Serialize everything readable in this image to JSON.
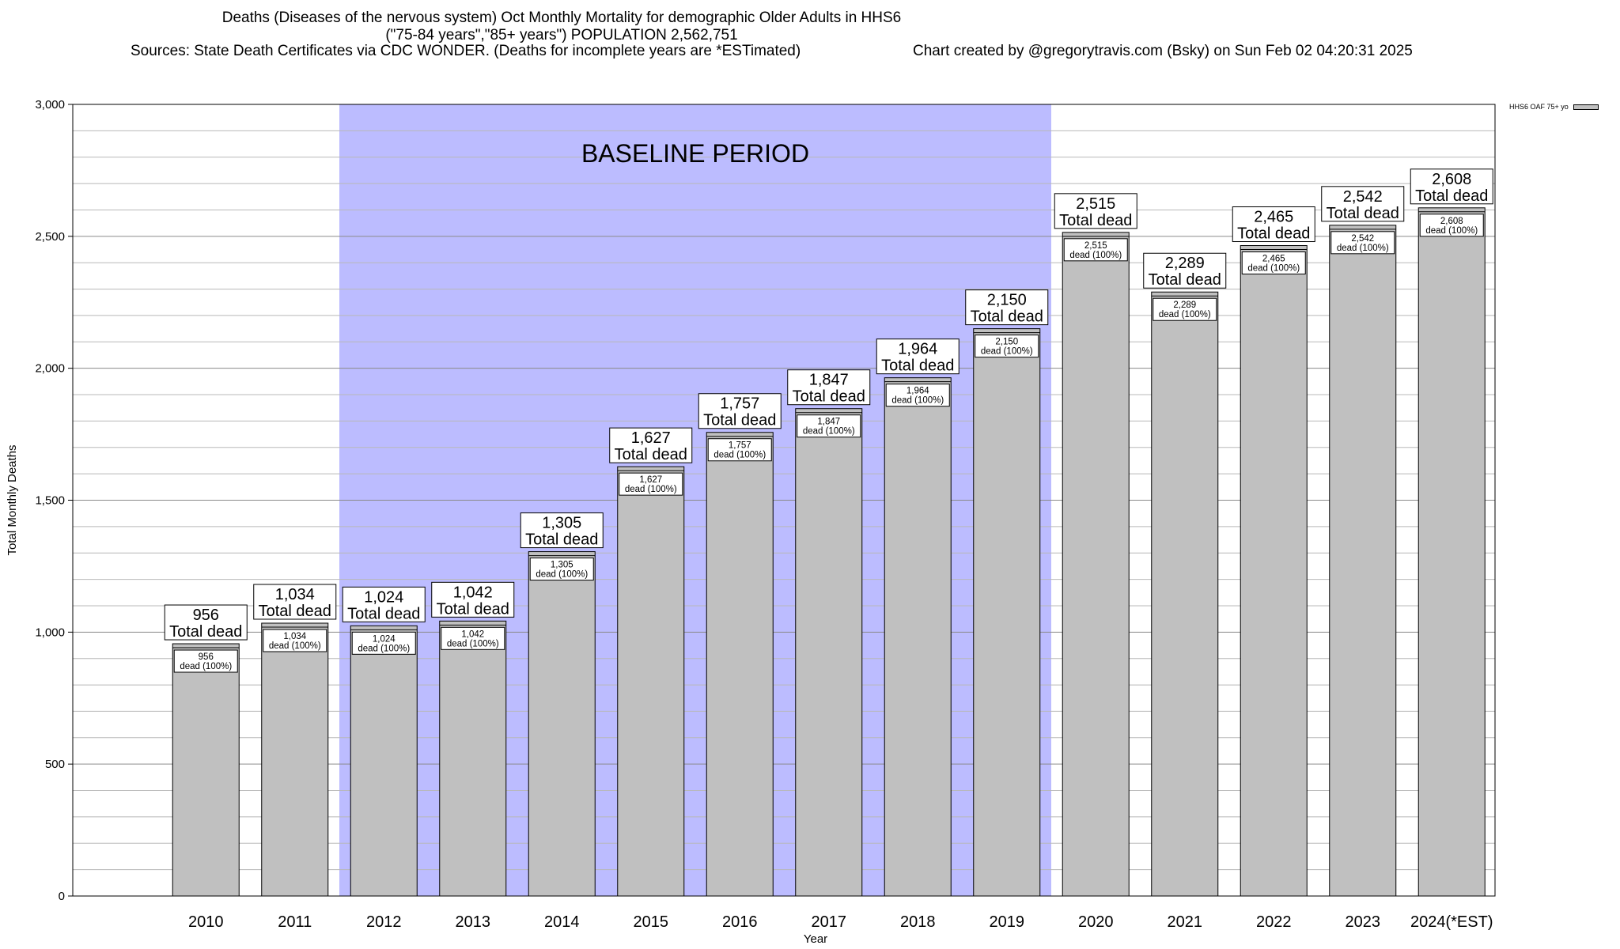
{
  "title": {
    "line1": "Deaths (Diseases of the nervous system) Oct Monthly Mortality for demographic Older Adults in HHS6",
    "line2": "(\"75-84 years\",\"85+ years\") POPULATION 2,562,751",
    "sources": "Sources: State Death Certificates via CDC WONDER. (Deaths for incomplete years are *ESTimated)",
    "credit": "Chart created by @gregorytravis.com (Bsky) on Sun Feb 02 04:20:31 2025"
  },
  "legend": {
    "label": "HHS6 OAF 75+ yo"
  },
  "chart_data": {
    "type": "bar",
    "categories": [
      "2010",
      "2011",
      "2012",
      "2013",
      "2014",
      "2015",
      "2016",
      "2017",
      "2018",
      "2019",
      "2020",
      "2021",
      "2022",
      "2023",
      "2024(*EST)"
    ],
    "series": [
      {
        "name": "HHS6 OAF 75+ yo",
        "values": [
          956,
          1034,
          1024,
          1042,
          1305,
          1627,
          1757,
          1847,
          1964,
          2150,
          2515,
          2289,
          2465,
          2542,
          2608
        ],
        "color": "#c0c0c0"
      }
    ],
    "value_labels": [
      "956",
      "1,034",
      "1,024",
      "1,042",
      "1,305",
      "1,627",
      "1,757",
      "1,847",
      "1,964",
      "2,150",
      "2,515",
      "2,289",
      "2,465",
      "2,542",
      "2,608"
    ],
    "total_label": "Total dead",
    "inner_label": "dead (100%)",
    "xlabel": "Year",
    "ylabel": "Total Monthly Deaths",
    "ylim": [
      0,
      3000
    ],
    "yticks": [
      0,
      500,
      1000,
      1500,
      2000,
      2500,
      3000
    ],
    "ytick_labels": [
      "0",
      "500",
      "1,000",
      "1,500",
      "2,000",
      "2,500",
      "3,000"
    ],
    "minor_grid_step": 100,
    "grid": true,
    "legend_position": "top-right",
    "baseline_period": {
      "label": "BASELINE PERIOD",
      "start": "2012",
      "end": "2019",
      "color": "#bcbcff"
    }
  }
}
